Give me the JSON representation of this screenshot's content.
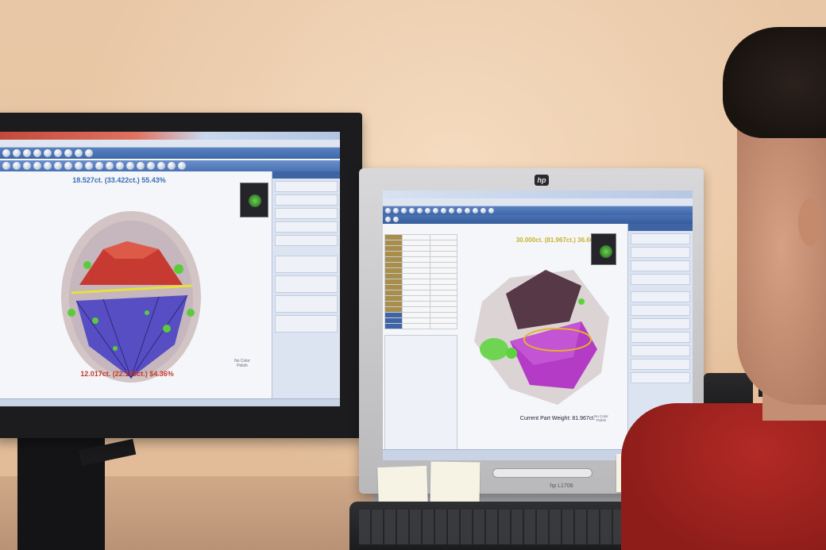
{
  "left_monitor": {
    "screen": {
      "top_label": "18.527ct. (33.422ct.) 55.43%",
      "bottom_label": "12.017ct. (22.105ct.) $4.36%",
      "corner_label_line1": "No Color",
      "corner_label_line2": "Polish",
      "model_colors": {
        "crown": "#c7342a",
        "pavilion": "#5149c4",
        "rough": "#cfc2bf",
        "inclusions": "#5acc3a",
        "girdle": "#e8e03a"
      }
    }
  },
  "right_monitor": {
    "brand_logo": "hp",
    "model_label": "hp L1706",
    "screen": {
      "top_label": "30.000ct. (81.967ct.) 36.60%",
      "bottom_label": "Current Part Weight: 81.967ct.",
      "corner_label_line1": "No Color",
      "corner_label_line2": "Polish",
      "model_colors": {
        "shape_dark": "#4b2a3a",
        "pavilion": "#b02ec4",
        "rough": "#d9d2d2",
        "inclusions": "#5ad43a",
        "outline": "#e6b02c"
      }
    }
  }
}
